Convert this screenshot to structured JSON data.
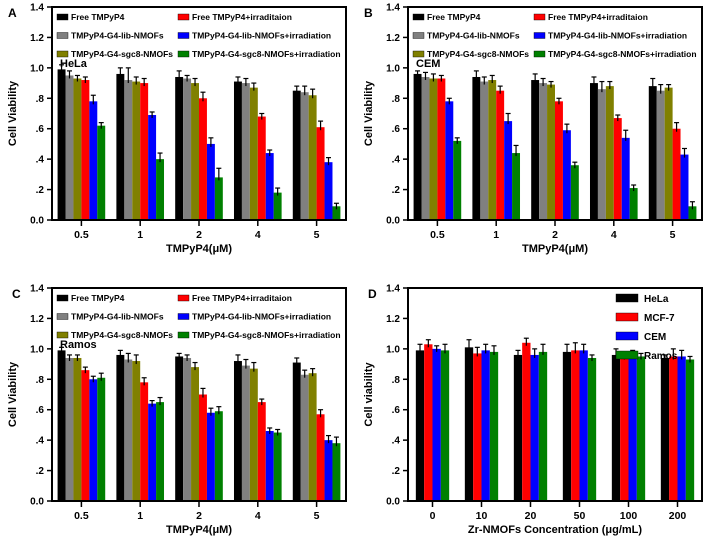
{
  "figure": {
    "background": "#ffffff",
    "text_color": "#000000",
    "axis_color": "#000000"
  },
  "chart_data": [
    {
      "type": "bar",
      "panel": "A",
      "annotation": "HeLa",
      "xlabel": "TMPyP4(μM)",
      "ylabel": "Cell Viability",
      "categories": [
        "0.5",
        "1",
        "2",
        "4",
        "5"
      ],
      "ylim": [
        0.0,
        1.4
      ],
      "yticks": [
        "0.0",
        ".2",
        ".4",
        ".6",
        ".8",
        "1.0",
        "1.2",
        "1.4"
      ],
      "grid": false,
      "legend_position": "top-left-two-columns",
      "legend_pairs": [
        [
          0,
          3
        ],
        [
          1,
          4
        ],
        [
          2,
          5
        ]
      ],
      "series": [
        {
          "name": "Free TMPyP4",
          "color": "#000000",
          "values": [
            0.99,
            0.96,
            0.94,
            0.91,
            0.85
          ],
          "errors": [
            0.03,
            0.04,
            0.04,
            0.03,
            0.03
          ]
        },
        {
          "name": "TMPyP4-G4-lib-NMOFs",
          "color": "#808080",
          "values": [
            0.95,
            0.92,
            0.93,
            0.9,
            0.84
          ],
          "errors": [
            0.03,
            0.08,
            0.02,
            0.03,
            0.04
          ]
        },
        {
          "name": "TMPyP4-G4-sgc8-NMOFs",
          "color": "#808000",
          "values": [
            0.93,
            0.91,
            0.9,
            0.87,
            0.82
          ],
          "errors": [
            0.02,
            0.03,
            0.03,
            0.03,
            0.04
          ]
        },
        {
          "name": "Free TMPyP4+irraditaion",
          "color": "#ff0000",
          "values": [
            0.92,
            0.9,
            0.8,
            0.68,
            0.61
          ],
          "errors": [
            0.02,
            0.03,
            0.04,
            0.02,
            0.04
          ]
        },
        {
          "name": "TMPyP4-G4-lib-NMOFs+irradiation",
          "color": "#0000ff",
          "values": [
            0.78,
            0.69,
            0.5,
            0.44,
            0.38
          ],
          "errors": [
            0.04,
            0.02,
            0.04,
            0.02,
            0.03
          ]
        },
        {
          "name": "TMPyP4-G4-sgc8-NMOFs+irradiation",
          "color": "#008000",
          "values": [
            0.62,
            0.4,
            0.28,
            0.18,
            0.09
          ],
          "errors": [
            0.02,
            0.04,
            0.06,
            0.03,
            0.02
          ]
        }
      ]
    },
    {
      "type": "bar",
      "panel": "B",
      "annotation": "CEM",
      "xlabel": "TMPyP4(μM)",
      "ylabel": "Cell Viability",
      "categories": [
        "0.5",
        "1",
        "2",
        "4",
        "5"
      ],
      "ylim": [
        0.0,
        1.4
      ],
      "yticks": [
        "0.0",
        ".2",
        ".4",
        ".6",
        ".8",
        "1.0",
        "1.2",
        "1.4"
      ],
      "grid": false,
      "legend_position": "top-left-two-columns",
      "legend_pairs": [
        [
          0,
          3
        ],
        [
          1,
          4
        ],
        [
          2,
          5
        ]
      ],
      "series": [
        {
          "name": "Free TMPyP4",
          "color": "#000000",
          "values": [
            0.96,
            0.94,
            0.92,
            0.9,
            0.88
          ],
          "errors": [
            0.02,
            0.04,
            0.04,
            0.04,
            0.05
          ]
        },
        {
          "name": "TMPyP4-G4-lib-NMOFs",
          "color": "#808080",
          "values": [
            0.94,
            0.91,
            0.9,
            0.86,
            0.85
          ],
          "errors": [
            0.03,
            0.03,
            0.03,
            0.05,
            0.04
          ]
        },
        {
          "name": "TMPyP4-G4-sgc8-NMOFs",
          "color": "#808000",
          "values": [
            0.93,
            0.92,
            0.89,
            0.88,
            0.87
          ],
          "errors": [
            0.03,
            0.03,
            0.02,
            0.03,
            0.02
          ]
        },
        {
          "name": "Free TMPyP4+irraditaion",
          "color": "#ff0000",
          "values": [
            0.93,
            0.85,
            0.78,
            0.67,
            0.6
          ],
          "errors": [
            0.02,
            0.03,
            0.02,
            0.02,
            0.04
          ]
        },
        {
          "name": "TMPyP4-G4-lib-NMOFs+irradiation",
          "color": "#0000ff",
          "values": [
            0.78,
            0.65,
            0.59,
            0.54,
            0.43
          ],
          "errors": [
            0.02,
            0.05,
            0.04,
            0.05,
            0.04
          ]
        },
        {
          "name": "TMPyP4-G4-sgc8-NMOFs+irradiation",
          "color": "#008000",
          "values": [
            0.52,
            0.44,
            0.36,
            0.21,
            0.09
          ],
          "errors": [
            0.02,
            0.05,
            0.02,
            0.02,
            0.03
          ]
        }
      ]
    },
    {
      "type": "bar",
      "panel": "C",
      "annotation": "Ramos",
      "xlabel": "TMPyP4(μM)",
      "ylabel": "Cell Viability",
      "categories": [
        "0.5",
        "1",
        "2",
        "4",
        "5"
      ],
      "ylim": [
        0.0,
        1.4
      ],
      "yticks": [
        "0.0",
        ".2",
        ".4",
        ".6",
        ".8",
        "1.0",
        "1.2",
        "1.4"
      ],
      "grid": false,
      "legend_position": "top-left-two-columns",
      "legend_pairs": [
        [
          0,
          3
        ],
        [
          1,
          4
        ],
        [
          2,
          5
        ]
      ],
      "series": [
        {
          "name": "Free TMPyP4",
          "color": "#000000",
          "values": [
            0.99,
            0.96,
            0.95,
            0.92,
            0.91
          ],
          "errors": [
            0.02,
            0.03,
            0.02,
            0.04,
            0.03
          ]
        },
        {
          "name": "TMPyP4-G4-lib-NMOFs",
          "color": "#808080",
          "values": [
            0.94,
            0.93,
            0.94,
            0.89,
            0.83
          ],
          "errors": [
            0.02,
            0.04,
            0.02,
            0.04,
            0.03
          ]
        },
        {
          "name": "TMPyP4-G4-sgc8-NMOFs",
          "color": "#808000",
          "values": [
            0.94,
            0.92,
            0.88,
            0.87,
            0.84
          ],
          "errors": [
            0.02,
            0.04,
            0.03,
            0.04,
            0.03
          ]
        },
        {
          "name": "Free TMPyP4+irraditaion",
          "color": "#ff0000",
          "values": [
            0.86,
            0.78,
            0.7,
            0.65,
            0.57
          ],
          "errors": [
            0.02,
            0.03,
            0.04,
            0.02,
            0.03
          ]
        },
        {
          "name": "TMPyP4-G4-lib-NMOFs+irradiation",
          "color": "#0000ff",
          "values": [
            0.8,
            0.64,
            0.58,
            0.46,
            0.4
          ],
          "errors": [
            0.02,
            0.02,
            0.03,
            0.02,
            0.03
          ]
        },
        {
          "name": "TMPyP4-G4-sgc8-NMOFs+irradiation",
          "color": "#008000",
          "values": [
            0.81,
            0.65,
            0.59,
            0.45,
            0.38
          ],
          "errors": [
            0.03,
            0.03,
            0.03,
            0.02,
            0.04
          ]
        }
      ]
    },
    {
      "type": "bar",
      "panel": "D",
      "annotation": "",
      "xlabel": "Zr-NMOFs Concentration (μg/mL)",
      "ylabel": "Cell viability",
      "categories": [
        "0",
        "10",
        "20",
        "50",
        "100",
        "200"
      ],
      "ylim": [
        0.0,
        1.4
      ],
      "yticks": [
        "0.0",
        ".2",
        ".4",
        ".6",
        ".8",
        "1.0",
        "1.2",
        "1.4"
      ],
      "grid": false,
      "legend_position": "top-right",
      "series": [
        {
          "name": "HeLa",
          "color": "#000000",
          "values": [
            0.99,
            1.01,
            0.96,
            0.98,
            0.96,
            0.94
          ],
          "errors": [
            0.04,
            0.05,
            0.03,
            0.05,
            0.04,
            0.02
          ]
        },
        {
          "name": "MCF-7",
          "color": "#ff0000",
          "values": [
            1.03,
            0.97,
            1.04,
            0.99,
            0.95,
            0.95
          ],
          "errors": [
            0.03,
            0.04,
            0.03,
            0.05,
            0.02,
            0.05
          ]
        },
        {
          "name": "CEM",
          "color": "#0000ff",
          "values": [
            1.0,
            0.99,
            0.96,
            0.99,
            0.97,
            0.95
          ],
          "errors": [
            0.02,
            0.04,
            0.04,
            0.04,
            0.02,
            0.04
          ]
        },
        {
          "name": "Ramos",
          "color": "#008000",
          "values": [
            0.99,
            0.98,
            0.98,
            0.94,
            0.95,
            0.93
          ],
          "errors": [
            0.04,
            0.04,
            0.05,
            0.02,
            0.02,
            0.02
          ]
        }
      ]
    }
  ]
}
